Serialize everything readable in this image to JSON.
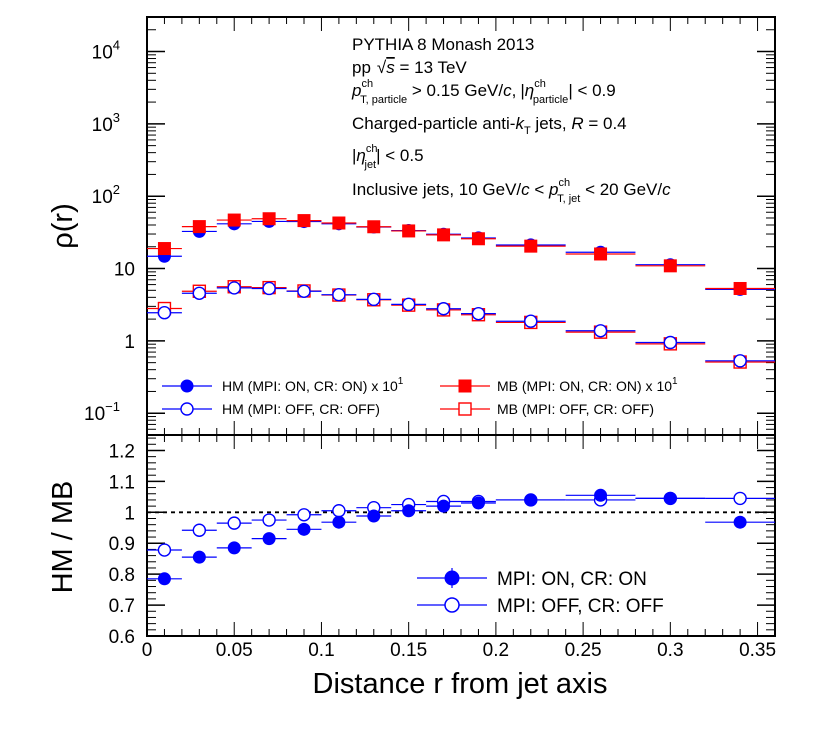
{
  "chart_data": [
    {
      "type": "scatter",
      "panel": "top",
      "yscale": "log",
      "ylabel": "ρ(r)",
      "ylim": [
        0.05,
        30000
      ],
      "xlim": [
        0,
        0.36
      ],
      "yticks": [
        {
          "v": 10000,
          "base": "10",
          "exp": "4"
        },
        {
          "v": 1000,
          "base": "10",
          "exp": "3"
        },
        {
          "v": 100,
          "base": "10",
          "exp": "2"
        },
        {
          "v": 10,
          "base": "10",
          "exp": ""
        },
        {
          "v": 1,
          "base": "1",
          "exp": ""
        },
        {
          "v": 0.1,
          "base": "10",
          "exp": "−1"
        }
      ],
      "annotations": {
        "generator": "PYTHIA 8 Monash 2013",
        "energy_prefix": "pp",
        "energy_sqrt": "√",
        "energy_s": "s",
        "energy_value": " = 13 TeV",
        "pt_p": "p",
        "pt_sup": "ch",
        "pt_sub": "T, particle",
        "pt_rest": " > 0.15 GeV/",
        "pt_c": "c",
        "eta_comma": ",",
        "eta_bar_open": "|",
        "eta_sym": "η",
        "eta_sup": "ch",
        "eta_sub": "particle",
        "eta_rest": "| < 0.9",
        "jets_prefix": "Charged-particle anti-",
        "jets_k": "k",
        "jets_ksub": "T",
        "jets_mid": " jets, ",
        "jets_R": "R",
        "jets_rest": " = 0.4",
        "etajet_bar": "|",
        "etajet_sym": "η",
        "etajet_sup": "ch",
        "etajet_sub": "jet",
        "etajet_rest": "| < 0.5",
        "incl_prefix": "Inclusive jets, 10 GeV/",
        "incl_c1": "c",
        "incl_lt": " < ",
        "incl_p": "p",
        "incl_sup": "ch",
        "incl_sub": "T, jet",
        "incl_mid": " < 20 GeV/",
        "incl_c2": "c"
      },
      "series": [
        {
          "name": "HM (MPI: ON, CR: ON) x 10",
          "name_exp": "1",
          "marker": "filled-circle",
          "color": "#0000ff",
          "x": [
            0.01,
            0.03,
            0.05,
            0.07,
            0.09,
            0.11,
            0.13,
            0.15,
            0.17,
            0.19,
            0.22,
            0.26,
            0.3,
            0.34
          ],
          "xerr": [
            0.01,
            0.01,
            0.01,
            0.01,
            0.01,
            0.01,
            0.01,
            0.01,
            0.01,
            0.01,
            0.02,
            0.02,
            0.02,
            0.02
          ],
          "y": [
            14.8,
            32.6,
            41.5,
            44.8,
            44.6,
            41.5,
            37.5,
            33.5,
            29.8,
            26.5,
            21.2,
            16.8,
            11.3,
            5.15
          ]
        },
        {
          "name": "MB (MPI: ON, CR: ON) x 10",
          "name_exp": "1",
          "marker": "filled-square",
          "color": "#ff0000",
          "x": [
            0.01,
            0.03,
            0.05,
            0.07,
            0.09,
            0.11,
            0.13,
            0.15,
            0.17,
            0.19,
            0.22,
            0.26,
            0.3,
            0.34
          ],
          "xerr": [
            0.01,
            0.01,
            0.01,
            0.01,
            0.01,
            0.01,
            0.01,
            0.01,
            0.01,
            0.01,
            0.02,
            0.02,
            0.02,
            0.02
          ],
          "y": [
            18.9,
            38.0,
            46.8,
            48.8,
            46.0,
            42.6,
            37.8,
            33.1,
            29.2,
            25.8,
            20.4,
            15.9,
            10.9,
            5.3
          ]
        },
        {
          "name": "HM (MPI: OFF, CR: OFF)",
          "name_exp": "",
          "marker": "open-circle",
          "color": "#0000ff",
          "x": [
            0.01,
            0.03,
            0.05,
            0.07,
            0.09,
            0.11,
            0.13,
            0.15,
            0.17,
            0.19,
            0.22,
            0.26,
            0.3,
            0.34
          ],
          "xerr": [
            0.01,
            0.01,
            0.01,
            0.01,
            0.01,
            0.01,
            0.01,
            0.01,
            0.01,
            0.01,
            0.02,
            0.02,
            0.02,
            0.02
          ],
          "y": [
            2.45,
            4.55,
            5.4,
            5.3,
            4.85,
            4.35,
            3.75,
            3.2,
            2.78,
            2.38,
            1.87,
            1.38,
            0.95,
            0.53
          ]
        },
        {
          "name": "MB (MPI: OFF, CR: OFF)",
          "name_exp": "",
          "marker": "open-square",
          "color": "#ff0000",
          "x": [
            0.01,
            0.03,
            0.05,
            0.07,
            0.09,
            0.11,
            0.13,
            0.15,
            0.17,
            0.19,
            0.22,
            0.26,
            0.3,
            0.34
          ],
          "xerr": [
            0.01,
            0.01,
            0.01,
            0.01,
            0.01,
            0.01,
            0.01,
            0.01,
            0.01,
            0.01,
            0.02,
            0.02,
            0.02,
            0.02
          ],
          "y": [
            2.8,
            4.85,
            5.6,
            5.45,
            4.9,
            4.3,
            3.7,
            3.12,
            2.68,
            2.3,
            1.8,
            1.32,
            0.91,
            0.51
          ]
        }
      ]
    },
    {
      "type": "scatter",
      "panel": "bottom",
      "yscale": "linear",
      "xlabel": "Distance r from jet axis",
      "ylabel": "HM / MB",
      "ylim": [
        0.6,
        1.25
      ],
      "xlim": [
        0,
        0.36
      ],
      "yticks": [
        "0.6",
        "0.7",
        "0.8",
        "0.9",
        "1",
        "1.1",
        "1.2"
      ],
      "xticks": [
        "0",
        "0.05",
        "0.1",
        "0.15",
        "0.2",
        "0.25",
        "0.3",
        "0.35"
      ],
      "reference_line": 1.0,
      "series": [
        {
          "name": "MPI: ON, CR: ON",
          "marker": "filled-circle",
          "color": "#0000ff",
          "x": [
            0.01,
            0.03,
            0.05,
            0.07,
            0.09,
            0.11,
            0.13,
            0.15,
            0.17,
            0.19,
            0.22,
            0.26,
            0.3,
            0.34
          ],
          "xerr": [
            0.01,
            0.01,
            0.01,
            0.01,
            0.01,
            0.01,
            0.01,
            0.01,
            0.01,
            0.01,
            0.02,
            0.02,
            0.02,
            0.02
          ],
          "y": [
            0.785,
            0.855,
            0.885,
            0.915,
            0.945,
            0.968,
            0.988,
            1.005,
            1.02,
            1.03,
            1.04,
            1.055,
            1.045,
            0.968
          ]
        },
        {
          "name": "MPI: OFF, CR: OFF",
          "marker": "open-circle",
          "color": "#0000ff",
          "x": [
            0.01,
            0.03,
            0.05,
            0.07,
            0.09,
            0.11,
            0.13,
            0.15,
            0.17,
            0.19,
            0.22,
            0.26,
            0.3,
            0.34
          ],
          "xerr": [
            0.01,
            0.01,
            0.01,
            0.01,
            0.01,
            0.01,
            0.01,
            0.01,
            0.01,
            0.01,
            0.02,
            0.02,
            0.02,
            0.02
          ],
          "y": [
            0.878,
            0.942,
            0.965,
            0.975,
            0.992,
            1.005,
            1.015,
            1.025,
            1.035,
            1.035,
            1.04,
            1.04,
            1.045,
            1.045
          ]
        }
      ]
    }
  ]
}
